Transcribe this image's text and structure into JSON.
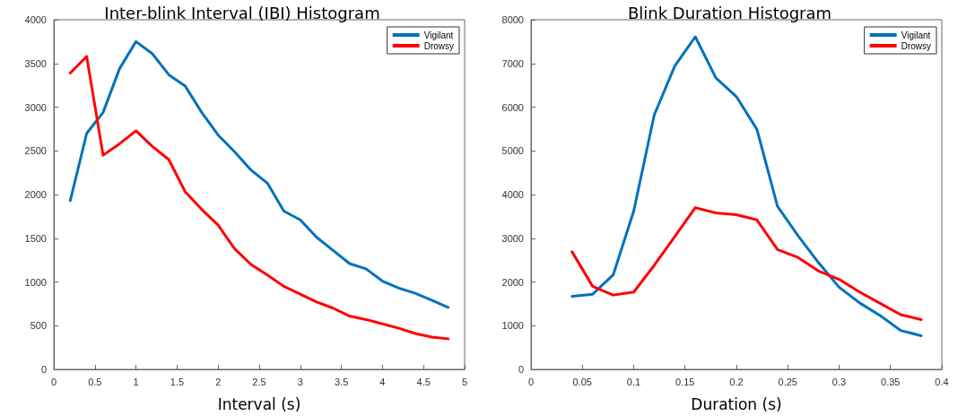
{
  "chart_data": [
    {
      "type": "line",
      "title": "Inter-blink Interval (IBI) Histogram",
      "xlabel": "Interval (s)",
      "x": [
        0.2,
        0.4,
        0.6,
        0.8,
        1.0,
        1.2,
        1.4,
        1.6,
        1.8,
        2.0,
        2.2,
        2.4,
        2.6,
        2.8,
        3.0,
        3.2,
        3.4,
        3.6,
        3.8,
        4.0,
        4.2,
        4.4,
        4.6,
        4.8
      ],
      "series": [
        {
          "name": "Vigilant",
          "color": "#0072bd",
          "values": [
            1930,
            2700,
            2940,
            3440,
            3750,
            3610,
            3370,
            3240,
            2940,
            2680,
            2490,
            2280,
            2130,
            1810,
            1710,
            1510,
            1360,
            1210,
            1150,
            1010,
            930,
            870,
            790,
            710
          ]
        },
        {
          "name": "Drowsy",
          "color": "#ff0000",
          "values": [
            3390,
            3580,
            2450,
            2580,
            2730,
            2550,
            2400,
            2030,
            1830,
            1650,
            1380,
            1200,
            1080,
            950,
            860,
            770,
            700,
            610,
            570,
            520,
            470,
            410,
            370,
            350
          ]
        }
      ],
      "xlim": [
        0,
        5
      ],
      "xticks": [
        0,
        0.5,
        1,
        1.5,
        2,
        2.5,
        3,
        3.5,
        4,
        4.5,
        5
      ],
      "ylim": [
        0,
        4000
      ],
      "yticks": [
        0,
        500,
        1000,
        1500,
        2000,
        2500,
        3000,
        3500,
        4000
      ],
      "grid": false,
      "legend": "top right",
      "marker": "none",
      "line_style": "solid"
    },
    {
      "type": "line",
      "title": "Blink Duration Histogram",
      "xlabel": "Duration (s)",
      "x": [
        0.04,
        0.06,
        0.08,
        0.1,
        0.12,
        0.14,
        0.16,
        0.18,
        0.2,
        0.22,
        0.24,
        0.26,
        0.28,
        0.3,
        0.32,
        0.34,
        0.36,
        0.38
      ],
      "series": [
        {
          "name": "Vigilant",
          "color": "#0072bd",
          "values": [
            1670,
            1720,
            2160,
            3620,
            5820,
            6940,
            7610,
            6670,
            6240,
            5490,
            3730,
            3060,
            2440,
            1880,
            1520,
            1230,
            890,
            770
          ]
        },
        {
          "name": "Drowsy",
          "color": "#ff0000",
          "values": [
            2690,
            1900,
            1700,
            1770,
            2380,
            3040,
            3700,
            3580,
            3540,
            3420,
            2740,
            2560,
            2250,
            2060,
            1770,
            1510,
            1250,
            1140
          ]
        }
      ],
      "xlim": [
        0,
        0.4
      ],
      "xticks": [
        0,
        0.05,
        0.1,
        0.15,
        0.2,
        0.25,
        0.3,
        0.35,
        0.4
      ],
      "ylim": [
        0,
        8000
      ],
      "yticks": [
        0,
        1000,
        2000,
        3000,
        4000,
        5000,
        6000,
        7000,
        8000
      ],
      "grid": false,
      "legend": "top right",
      "marker": "none",
      "line_style": "solid"
    }
  ]
}
